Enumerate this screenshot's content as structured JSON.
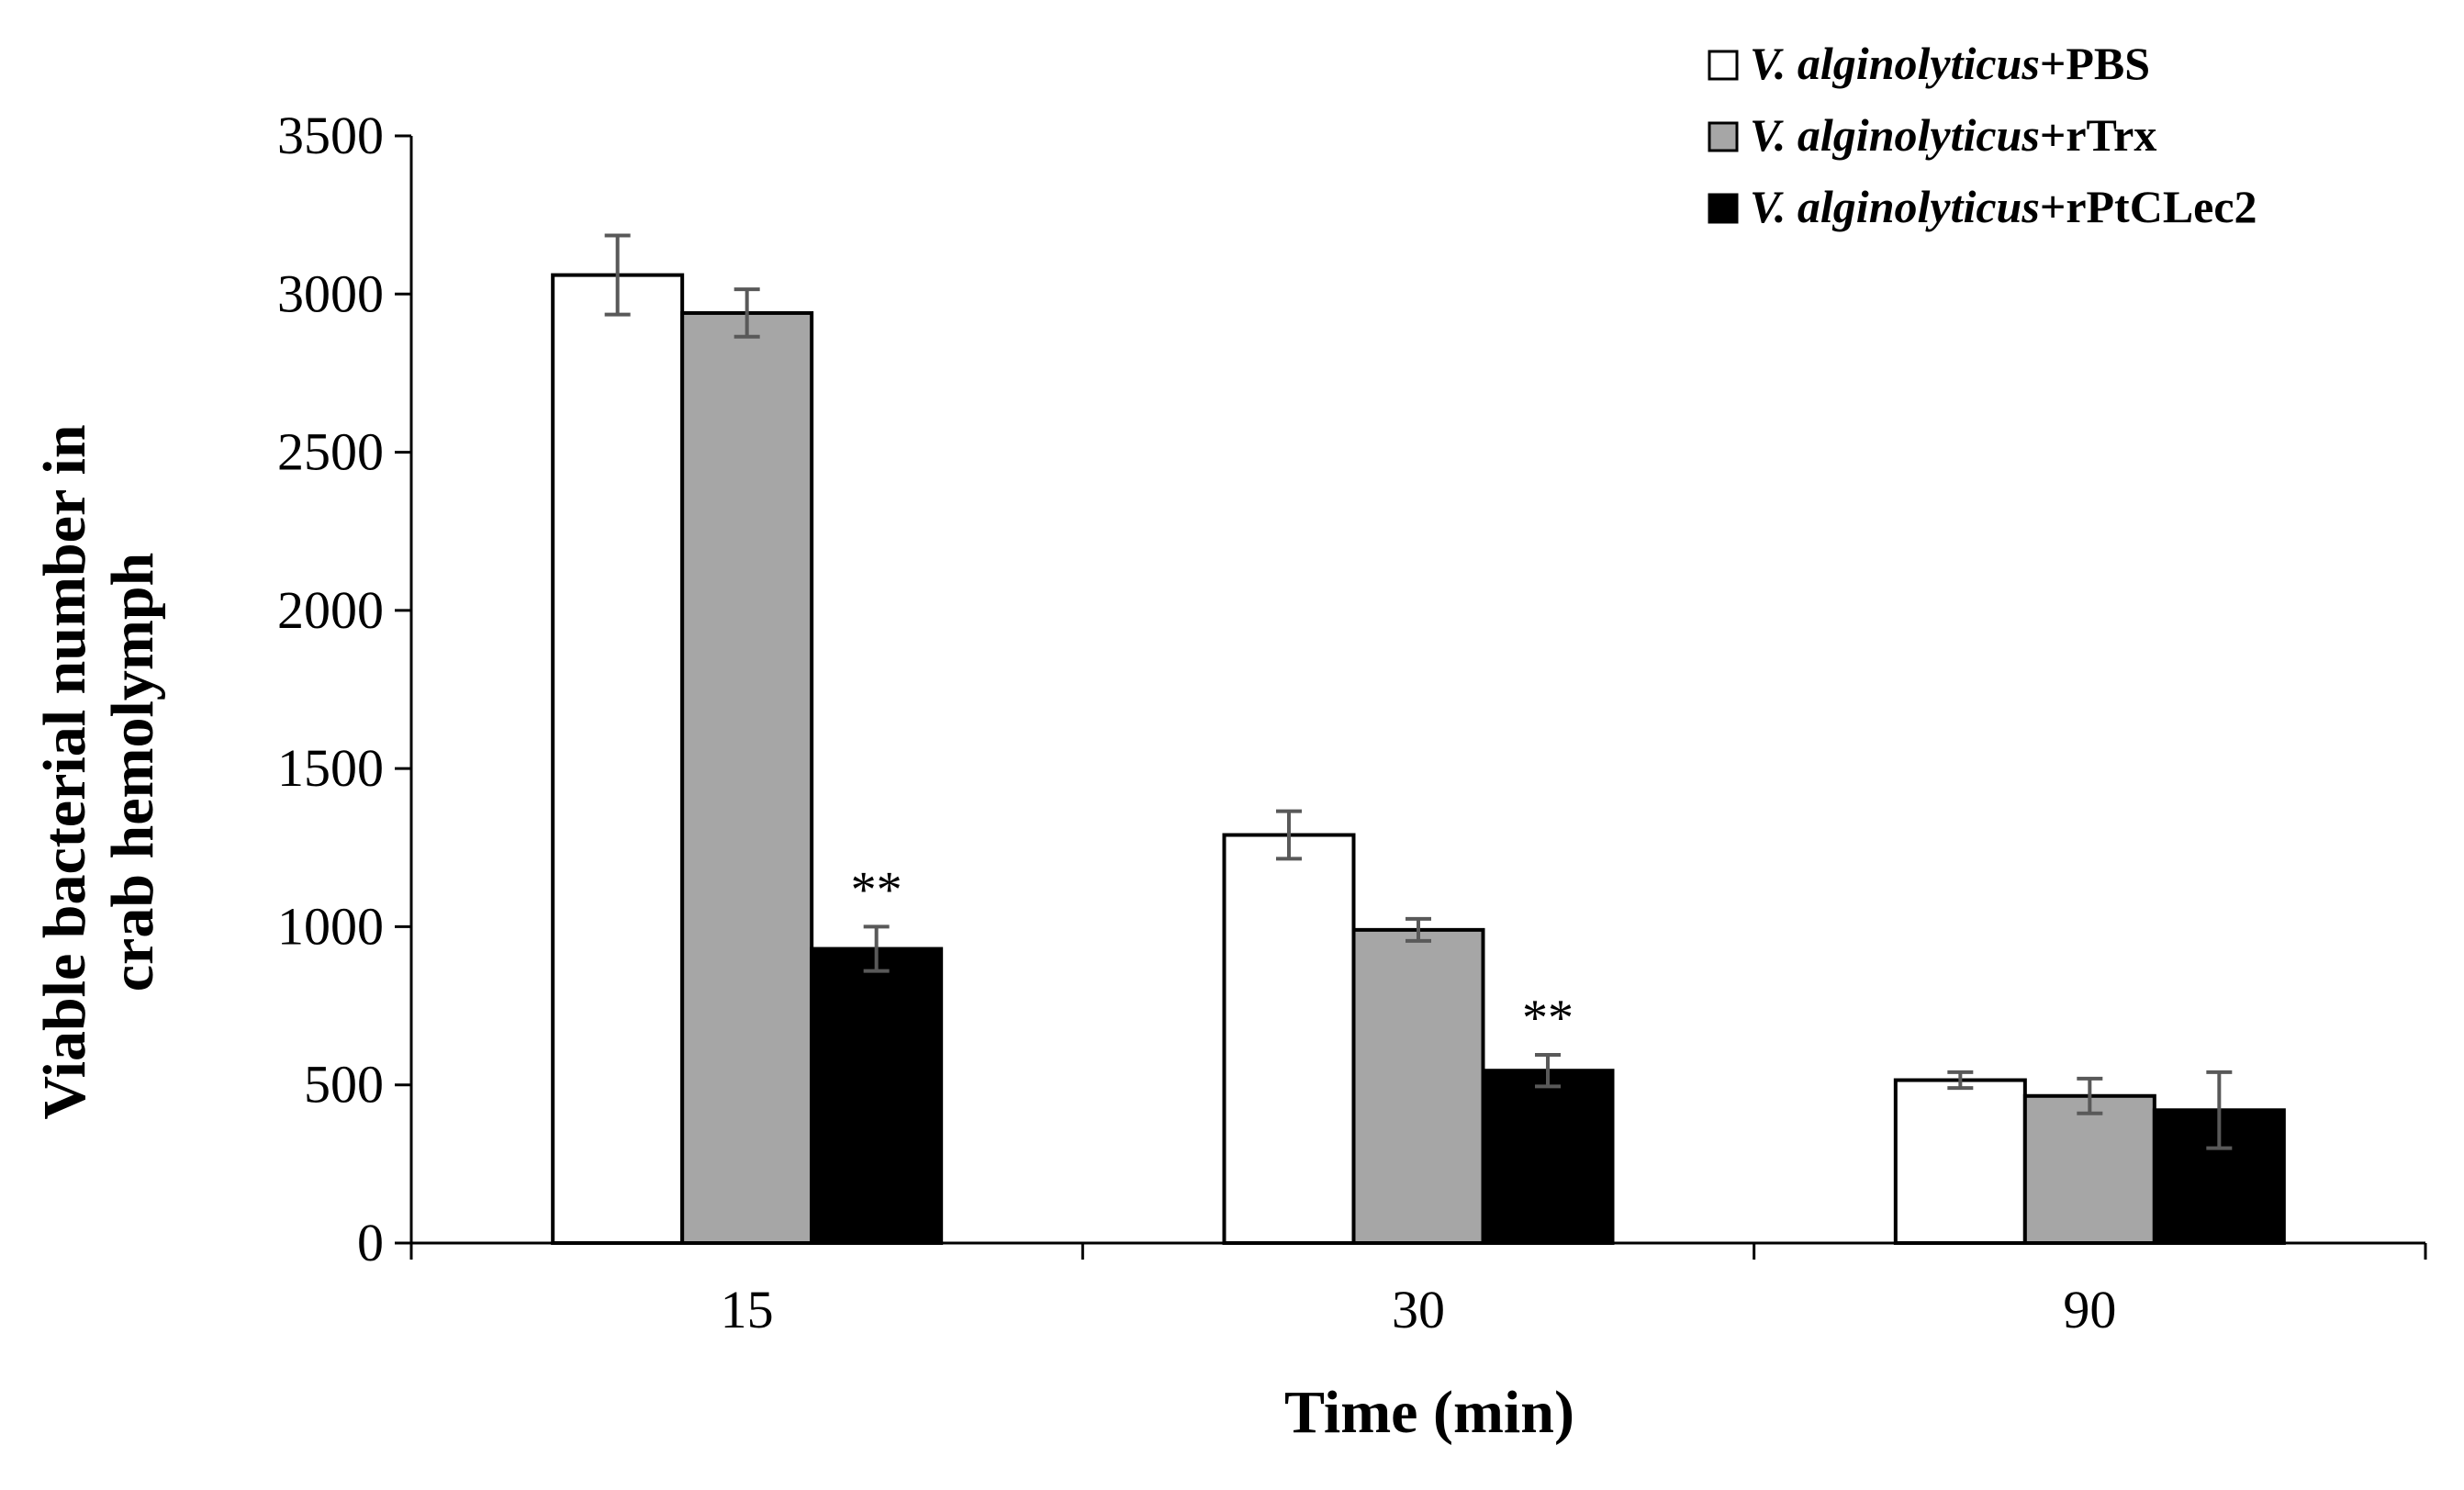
{
  "chart_data": {
    "type": "bar",
    "title": "",
    "xlabel": "Time (min)",
    "ylabel_lines": [
      "Viable bacterial number in",
      "crab hemolymph"
    ],
    "categories": [
      "15",
      "30",
      "90"
    ],
    "ylim": [
      0,
      3500
    ],
    "yticks": [
      0,
      500,
      1000,
      1500,
      2000,
      2500,
      3000,
      3500
    ],
    "series": [
      {
        "name": "V. alginolyticus+PBS",
        "species": "V. alginolyticus",
        "suffix": "+PBS",
        "color": "#ffffff",
        "values": [
          3060,
          1290,
          515
        ],
        "errors": [
          125,
          75,
          25
        ]
      },
      {
        "name": "V. alginolyticus+rTrx",
        "species": "V. alginolyticus",
        "suffix": "+rTrx",
        "color": "#a6a6a6",
        "values": [
          2940,
          990,
          465
        ],
        "errors": [
          75,
          35,
          55
        ]
      },
      {
        "name": "V. alginolyticus+rPtCLec2",
        "species": "V. alginolyticus",
        "suffix": "+rPtCLec2",
        "color": "#000000",
        "values": [
          930,
          545,
          420
        ],
        "errors": [
          70,
          50,
          120
        ]
      }
    ],
    "annotations": [
      {
        "text": "**",
        "category": "15",
        "series_index": 2
      },
      {
        "text": "**",
        "category": "30",
        "series_index": 2
      }
    ],
    "legend_position": "top-right",
    "grid": false
  }
}
